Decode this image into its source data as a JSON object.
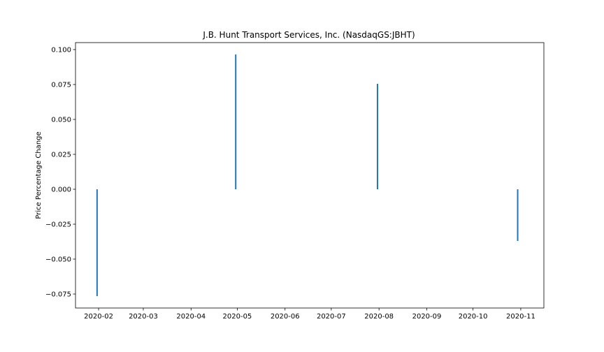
{
  "chart_data": {
    "type": "bar",
    "title": "J.B. Hunt Transport Services, Inc. (NasdaqGS:JBHT)",
    "xlabel": "",
    "ylabel": "Price Percentage Change",
    "x_ticks": [
      "2020-02",
      "2020-03",
      "2020-04",
      "2020-05",
      "2020-06",
      "2020-07",
      "2020-08",
      "2020-09",
      "2020-10",
      "2020-11"
    ],
    "y_ticks": [
      "−0.075",
      "−0.050",
      "−0.025",
      "0.000",
      "0.025",
      "0.050",
      "0.075",
      "0.100"
    ],
    "x_range": [
      "2020-01-17",
      "2020-11-16"
    ],
    "ylim": [
      -0.085,
      0.105
    ],
    "grid": false,
    "series": [
      {
        "color": "#1f77b4",
        "points": [
          {
            "x": "2020-01-31",
            "value": -0.0765
          },
          {
            "x": "2020-04-30",
            "value": 0.0965
          },
          {
            "x": "2020-07-31",
            "value": 0.0755
          },
          {
            "x": "2020-10-30",
            "value": -0.037
          }
        ]
      }
    ]
  }
}
